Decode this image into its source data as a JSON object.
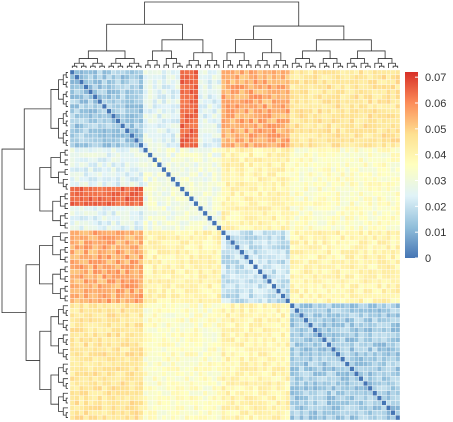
{
  "chart_data": {
    "type": "heatmap",
    "title": "",
    "xlabel": "",
    "ylabel": "",
    "n": 72,
    "clusters": [
      {
        "start": 0,
        "end": 16
      },
      {
        "start": 16,
        "end": 33
      },
      {
        "start": 33,
        "end": 48
      },
      {
        "start": 48,
        "end": 72
      }
    ],
    "subclusters": [
      {
        "start": 0,
        "end": 16
      },
      {
        "start": 16,
        "end": 25
      },
      {
        "start": 25,
        "end": 33
      },
      {
        "start": 33,
        "end": 40
      },
      {
        "start": 40,
        "end": 48
      },
      {
        "start": 48,
        "end": 60
      },
      {
        "start": 60,
        "end": 72
      }
    ],
    "block_values": [
      [
        0.015,
        0.025,
        0.055,
        0.045
      ],
      [
        0.025,
        0.03,
        0.04,
        0.035
      ],
      [
        0.055,
        0.04,
        0.02,
        0.04
      ],
      [
        0.045,
        0.035,
        0.04,
        0.015
      ]
    ],
    "highlight_band": {
      "rows": [
        24,
        28
      ],
      "cols": [
        0,
        16
      ],
      "value": 0.065
    },
    "diagonal_value": 0.0,
    "column_dendrogram_order": [
      0,
      1,
      2,
      3,
      4,
      5,
      6,
      7,
      8,
      9,
      10,
      11,
      12,
      13,
      14,
      15,
      16,
      17,
      18,
      19,
      20,
      21,
      22,
      23,
      24,
      25,
      26,
      27,
      28,
      29,
      30,
      31,
      32,
      33,
      34,
      35,
      36,
      37,
      38,
      39,
      40,
      41,
      42,
      43,
      44,
      45,
      46,
      47,
      48,
      49,
      50,
      51,
      52,
      53,
      54,
      55,
      56,
      57,
      58,
      59,
      60,
      61,
      62,
      63,
      64,
      65,
      66,
      67,
      68,
      69,
      70,
      71
    ],
    "colorbar": {
      "min": 0,
      "max": 0.072,
      "ticks": [
        0,
        0.01,
        0.02,
        0.03,
        0.04,
        0.05,
        0.06,
        0.07
      ],
      "tick_labels": [
        "0",
        "0.01",
        "0.02",
        "0.03",
        "0.04",
        "0.05",
        "0.06",
        "0.07"
      ],
      "colors": [
        "#4575b4",
        "#91bfdb",
        "#e0f3f8",
        "#ffffbf",
        "#fee090",
        "#fc8d59",
        "#d73027"
      ]
    }
  }
}
